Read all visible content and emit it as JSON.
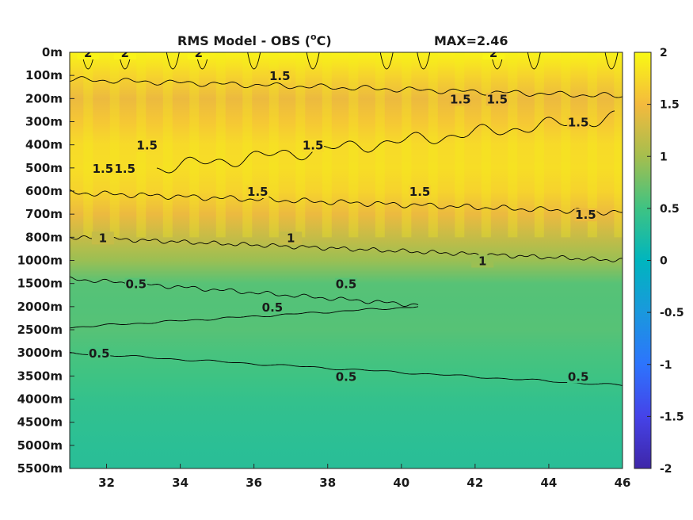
{
  "chart_data": {
    "type": "heatmap",
    "title": "RMS Model - OBS (",
    "title_unit_sup": "o",
    "title_unit_end": "C)",
    "max_label": "MAX=2.46",
    "x_ticks": [
      "32",
      "34",
      "36",
      "38",
      "40",
      "42",
      "44",
      "46"
    ],
    "x_tick_values": [
      32,
      34,
      36,
      38,
      40,
      42,
      44,
      46
    ],
    "xlim": [
      31,
      46
    ],
    "y_ticks": [
      "0m",
      "100m",
      "200m",
      "300m",
      "400m",
      "500m",
      "600m",
      "700m",
      "800m",
      "1000m",
      "1500m",
      "2000m",
      "2500m",
      "3000m",
      "3500m",
      "4000m",
      "4500m",
      "5000m",
      "5500m"
    ],
    "colorbar": {
      "ticks": [
        "2",
        "1.5",
        "1",
        "0.5",
        "0",
        "-0.5",
        "-1",
        "-1.5",
        "-2"
      ],
      "tick_values": [
        2,
        1.5,
        1,
        0.5,
        0,
        -0.5,
        -1,
        -1.5,
        -2
      ],
      "range": [
        -2,
        2
      ],
      "colormap": "parula"
    },
    "rows": [
      {
        "depth": "0m",
        "value": 1.95
      },
      {
        "depth": "100m",
        "value": 1.7
      },
      {
        "depth": "200m",
        "value": 1.45
      },
      {
        "depth": "300m",
        "value": 1.6
      },
      {
        "depth": "400m",
        "value": 1.75
      },
      {
        "depth": "500m",
        "value": 1.78
      },
      {
        "depth": "600m",
        "value": 1.7
      },
      {
        "depth": "700m",
        "value": 1.45
      },
      {
        "depth": "800m",
        "value": 1.2
      },
      {
        "depth": "1000m",
        "value": 0.95
      },
      {
        "depth": "1500m",
        "value": 0.62
      },
      {
        "depth": "2000m",
        "value": 0.6
      },
      {
        "depth": "2500m",
        "value": 0.62
      },
      {
        "depth": "3000m",
        "value": 0.55
      },
      {
        "depth": "3500m",
        "value": 0.5
      },
      {
        "depth": "4000m",
        "value": 0.42
      },
      {
        "depth": "4500m",
        "value": 0.38
      },
      {
        "depth": "5000m",
        "value": 0.35
      },
      {
        "depth": "5500m",
        "value": 0.33
      }
    ],
    "contours": [
      {
        "level": 2,
        "labels": [
          {
            "text": "2",
            "x": 31.5,
            "depth": "0m"
          },
          {
            "text": "2",
            "x": 32.5,
            "depth": "0m"
          },
          {
            "text": "2",
            "x": 34.5,
            "depth": "0m"
          },
          {
            "text": "2",
            "x": 42.5,
            "depth": "0m"
          }
        ]
      },
      {
        "level": 1.5,
        "labels": [
          {
            "text": "1.5",
            "x": 36.7,
            "depth": "100m"
          },
          {
            "text": "1.5",
            "x": 42.6,
            "depth": "200m"
          },
          {
            "text": "1.5",
            "x": 41.6,
            "depth": "200m"
          },
          {
            "text": "1.5",
            "x": 44.8,
            "depth": "300m"
          },
          {
            "text": "1.5",
            "x": 37.6,
            "depth": "400m"
          },
          {
            "text": "1.5",
            "x": 33.1,
            "depth": "400m"
          },
          {
            "text": "1.5",
            "x": 31.9,
            "depth": "500m"
          },
          {
            "text": "1.5",
            "x": 32.5,
            "depth": "500m"
          },
          {
            "text": "1.5",
            "x": 36.1,
            "depth": "600m"
          },
          {
            "text": "1.5",
            "x": 40.5,
            "depth": "600m"
          },
          {
            "text": "1.5",
            "x": 45.0,
            "depth": "700m"
          }
        ]
      },
      {
        "level": 1,
        "labels": [
          {
            "text": "1",
            "x": 31.9,
            "depth": "800m"
          },
          {
            "text": "1",
            "x": 37.0,
            "depth": "800m"
          },
          {
            "text": "1",
            "x": 42.2,
            "depth": "1000m"
          }
        ]
      },
      {
        "level": 0.5,
        "labels": [
          {
            "text": "0.5",
            "x": 32.8,
            "depth": "1500m"
          },
          {
            "text": "0.5",
            "x": 38.5,
            "depth": "1500m"
          },
          {
            "text": "0.5",
            "x": 36.5,
            "depth": "2000m"
          },
          {
            "text": "0.5",
            "x": 31.8,
            "depth": "3000m"
          },
          {
            "text": "0.5",
            "x": 38.5,
            "depth": "3500m"
          },
          {
            "text": "0.5",
            "x": 44.8,
            "depth": "3500m"
          }
        ]
      }
    ]
  }
}
